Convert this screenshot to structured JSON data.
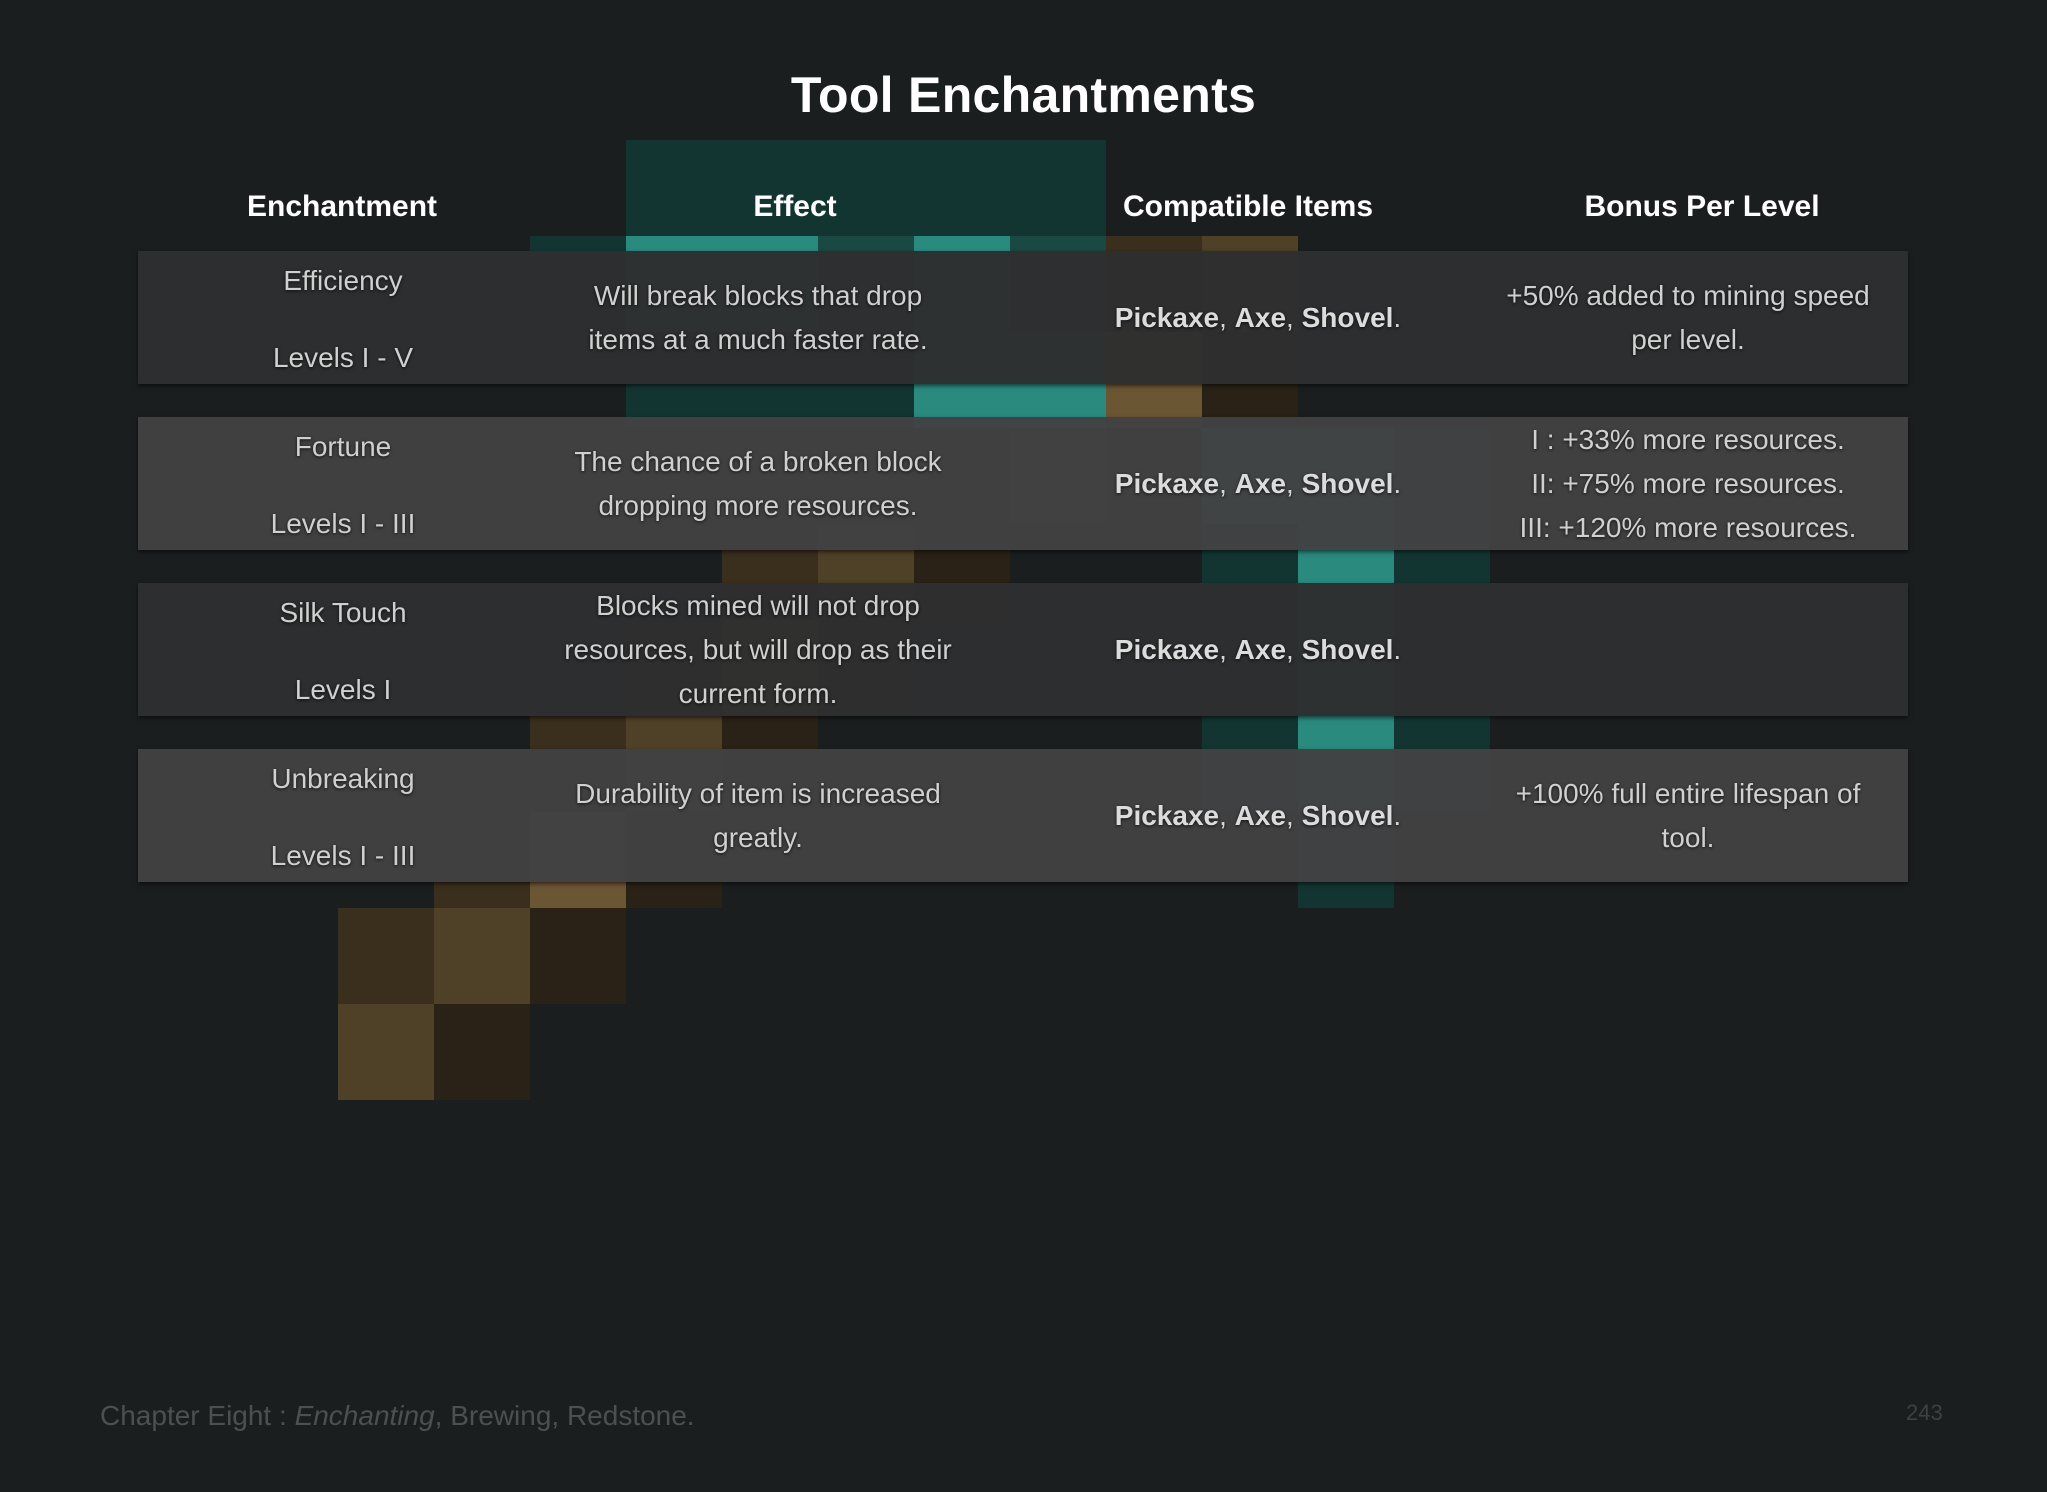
{
  "title": "Tool Enchantments",
  "columns": [
    "Enchantment",
    "Effect",
    "Compatible Items",
    "Bonus Per Level"
  ],
  "rows": [
    {
      "name": "Efficiency",
      "levels": "Levels I - V",
      "effect": [
        "Will break blocks that drop",
        "items at a much faster rate."
      ],
      "items": [
        "Pickaxe",
        "Axe",
        "Shovel"
      ],
      "bonus": [
        "+50% added to mining speed",
        "per level."
      ]
    },
    {
      "name": "Fortune",
      "levels": "Levels I - III",
      "effect": [
        "The chance of a broken block",
        "dropping more resources."
      ],
      "items": [
        "Pickaxe",
        "Axe",
        "Shovel"
      ],
      "bonus": [
        "I : +33% more resources.",
        "II: +75% more resources.",
        "III: +120% more resources."
      ]
    },
    {
      "name": "Silk Touch",
      "levels": "Levels I",
      "effect": [
        "Blocks mined will not drop",
        "resources, but will drop as their",
        "current form."
      ],
      "items": [
        "Pickaxe",
        "Axe",
        "Shovel"
      ],
      "bonus": []
    },
    {
      "name": "Unbreaking",
      "levels": "Levels I - III",
      "effect": [
        "Durability of item is increased",
        "greatly."
      ],
      "items": [
        "Pickaxe",
        "Axe",
        "Shovel"
      ],
      "bonus": [
        "+100% full entire lifespan of",
        "tool."
      ]
    }
  ],
  "items_separator": ", ",
  "items_terminator": ".",
  "footer": {
    "chapter": "Chapter Eight : ",
    "topic_italic": "Enchanting",
    "rest": ", Brewing, Redstone."
  },
  "page_number": "243",
  "background_art": "diamond-pickaxe-icon",
  "colors": {
    "background": "#1b1e1f",
    "row_dark": "#2e2e2f",
    "row_light": "#424243",
    "diamond": "#2a8a7e",
    "wood": "#4f4028"
  }
}
